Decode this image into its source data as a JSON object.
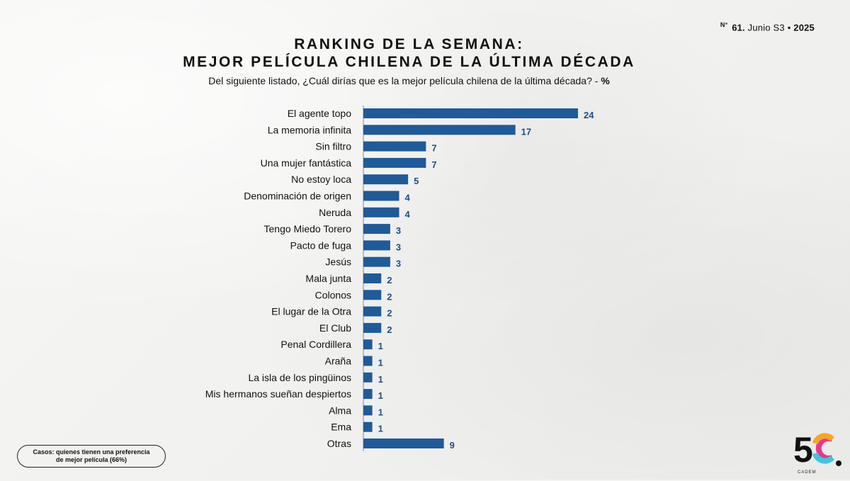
{
  "issue": {
    "prefix": "N°",
    "number": "61.",
    "period": "Junio S3",
    "sep": "•",
    "year": "2025"
  },
  "title_line1": "RANKING DE LA SEMANA:",
  "title_line2": "MEJOR PELÍCULA CHILENA DE LA ÚLTIMA DÉCADA",
  "question": "Del siguiente listado, ¿Cuál dirías que es la mejor película chilena de la última década? -",
  "question_unit": "%",
  "cases_line1": "Casos: quienes tienen una preferencia",
  "cases_line2": "de mejor película (66%)",
  "logo": {
    "text": "5C",
    "sub": "CADEM",
    "accent_colors": [
      "#e8368f",
      "#f5a623",
      "#3ec6e0",
      "#7ac143"
    ]
  },
  "colors": {
    "bar": "#1f5a99",
    "value": "#1f4e86"
  },
  "chart_data": {
    "type": "bar",
    "orientation": "horizontal",
    "categories": [
      "El agente topo",
      "La memoria infinita",
      "Sin filtro",
      "Una mujer fantástica",
      "No estoy loca",
      "Denominación de origen",
      "Neruda",
      "Tengo Miedo Torero",
      "Pacto de fuga",
      "Jesús",
      "Mala junta",
      "Colonos",
      "El lugar de la Otra",
      "El Club",
      "Penal Cordillera",
      "Araña",
      "La isla de los pingüinos",
      "Mis hermanos sueñan despiertos",
      "Alma",
      "Ema",
      "Otras"
    ],
    "values": [
      24,
      17,
      7,
      7,
      5,
      4,
      4,
      3,
      3,
      3,
      2,
      2,
      2,
      2,
      1,
      1,
      1,
      1,
      1,
      1,
      9
    ],
    "unit": "%"
  }
}
